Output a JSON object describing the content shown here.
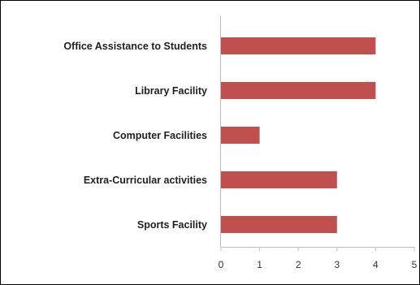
{
  "chart_data": {
    "type": "bar",
    "orientation": "horizontal",
    "title": "",
    "xlabel": "",
    "ylabel": "",
    "categories": [
      "Office Assistance to Students",
      "Library Facility",
      "Computer Facilities",
      "Extra-Curricular activities",
      "Sports Facility"
    ],
    "values": [
      4,
      4,
      1,
      3,
      3
    ],
    "xlim": [
      0,
      5
    ],
    "xticks": [
      "0",
      "1",
      "2",
      "3",
      "4",
      "5"
    ],
    "grid": false,
    "legend": "none",
    "bar_color": "#C0504D",
    "axis_color": "#BFBFBF"
  }
}
